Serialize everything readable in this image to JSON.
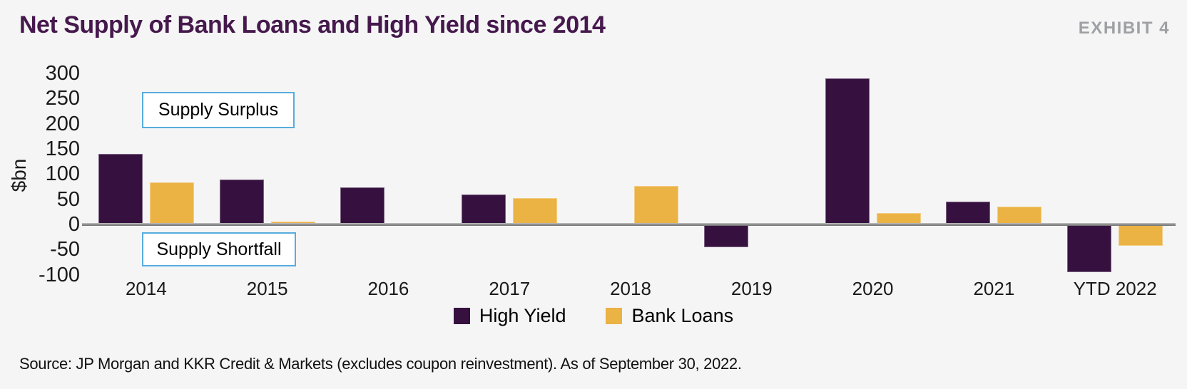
{
  "header": {
    "title": "Net Supply of Bank Loans and High Yield since 2014",
    "exhibit": "EXHIBIT 4"
  },
  "annotations": {
    "surplus": "Supply Surplus",
    "shortfall": "Supply Shortfall"
  },
  "source": "Source: JP Morgan and KKR Credit & Markets (excludes coupon reinvestment). As of September 30, 2022.",
  "colors": {
    "background": "#F5F5F6",
    "high_yield": "#36113F",
    "bank_loans": "#EBB244",
    "title_text": "#46194D",
    "exhibit_text": "#9EA0A3",
    "annotation_border": "#58ACDE",
    "axis_line": "#8C8C8C"
  },
  "chart_data": {
    "type": "bar",
    "title": "Net Supply of Bank Loans and High Yield since 2014",
    "xlabel": "",
    "ylabel": "$bn",
    "ylim": [
      -100,
      300
    ],
    "ytick_step": 50,
    "grid": false,
    "legend_position": "bottom",
    "categories": [
      "2014",
      "2015",
      "2016",
      "2017",
      "2018",
      "2019",
      "2020",
      "2021",
      "YTD 2022"
    ],
    "series": [
      {
        "name": "High Yield",
        "color": "#36113F",
        "values": [
          140,
          89,
          73,
          60,
          2,
          -45,
          290,
          45,
          -95
        ]
      },
      {
        "name": "Bank Loans",
        "color": "#EBB244",
        "values": [
          83,
          5,
          2,
          53,
          77,
          0,
          23,
          35,
          -43
        ]
      }
    ],
    "annotations": [
      "Supply Surplus",
      "Supply Shortfall"
    ]
  }
}
